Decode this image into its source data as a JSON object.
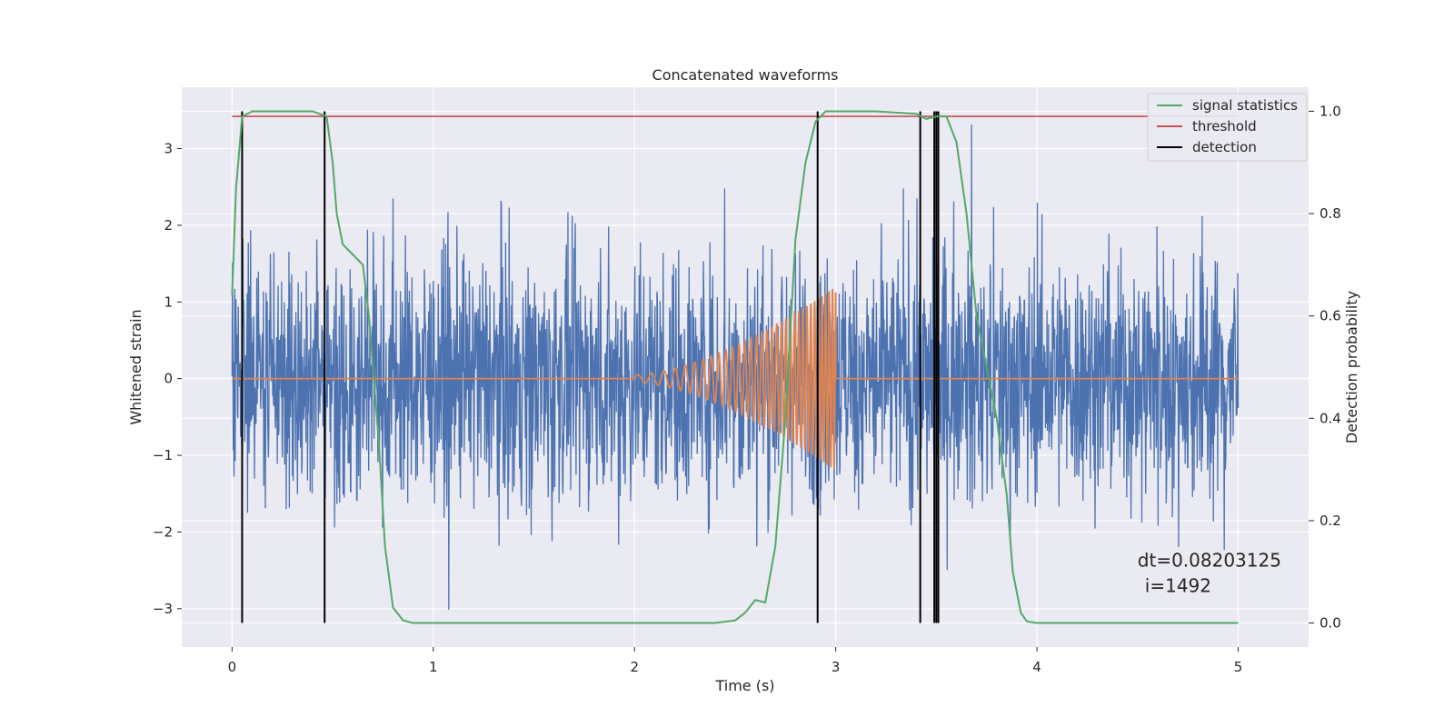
{
  "chart_data": {
    "type": "line",
    "title": "Concatenated waveforms",
    "xlabel": "Time (s)",
    "ylabel": "Whitened strain",
    "y2label": "Detection probability",
    "xlim": [
      -0.25,
      5.35
    ],
    "ylim": [
      -3.5,
      3.8
    ],
    "y2lim": [
      -0.047,
      1.047
    ],
    "xticks": [
      0,
      1,
      2,
      3,
      4,
      5
    ],
    "xtick_labels": [
      "0",
      "1",
      "2",
      "3",
      "4",
      "5"
    ],
    "yticks": [
      -3,
      -2,
      -1,
      0,
      1,
      2,
      3
    ],
    "ytick_labels": [
      "−3",
      "−2",
      "−1",
      "0",
      "1",
      "2",
      "3"
    ],
    "y2ticks": [
      0.0,
      0.2,
      0.4,
      0.6,
      0.8,
      1.0
    ],
    "y2tick_labels": [
      "0.0",
      "0.2",
      "0.4",
      "0.6",
      "0.8",
      "1.0"
    ],
    "grid": true,
    "legend_position": "top-right",
    "colors": {
      "strain": "#4c72b0",
      "waveform": "#dd8452",
      "signal_statistics": "#55a868",
      "threshold": "#c44e52",
      "detection": "#000000",
      "background": "#eaeaf2"
    },
    "series": [
      {
        "name": "signal statistics",
        "axis": "right",
        "x": [
          0.0,
          0.02,
          0.05,
          0.1,
          0.2,
          0.3,
          0.4,
          0.47,
          0.5,
          0.52,
          0.55,
          0.6,
          0.65,
          0.68,
          0.7,
          0.73,
          0.76,
          0.8,
          0.85,
          0.9,
          1.0,
          1.5,
          2.0,
          2.4,
          2.5,
          2.55,
          2.6,
          2.65,
          2.7,
          2.75,
          2.8,
          2.85,
          2.9,
          2.95,
          3.0,
          3.2,
          3.4,
          3.45,
          3.5,
          3.55,
          3.6,
          3.65,
          3.7,
          3.75,
          3.8,
          3.85,
          3.88,
          3.92,
          3.95,
          4.0,
          4.5,
          5.0
        ],
        "y": [
          0.64,
          0.85,
          0.99,
          1.0,
          1.0,
          1.0,
          1.0,
          0.99,
          0.9,
          0.8,
          0.74,
          0.72,
          0.7,
          0.6,
          0.5,
          0.35,
          0.15,
          0.03,
          0.005,
          0.0,
          0.0,
          0.0,
          0.0,
          0.0,
          0.005,
          0.02,
          0.045,
          0.04,
          0.15,
          0.4,
          0.75,
          0.9,
          0.98,
          1.0,
          1.0,
          1.0,
          0.995,
          0.985,
          0.99,
          0.99,
          0.94,
          0.8,
          0.6,
          0.5,
          0.4,
          0.25,
          0.1,
          0.02,
          0.003,
          0.0,
          0.0,
          0.0
        ]
      },
      {
        "name": "threshold",
        "axis": "right",
        "x": [
          0.0,
          5.0
        ],
        "y": [
          0.99,
          0.99
        ]
      },
      {
        "name": "detection",
        "axis": "right",
        "type": "vlines",
        "x": [
          0.05,
          0.46,
          2.91,
          3.42,
          3.49,
          3.5,
          3.51
        ],
        "ymin": 0.0,
        "ymax": 1.0
      }
    ],
    "waveform_chirp": {
      "axis": "left",
      "x_start": 2.0,
      "x_end": 3.0,
      "amp_start": 0.05,
      "amp_end": 1.2,
      "freq_start": 14,
      "freq_end": 60
    },
    "strain_noise": {
      "axis": "left",
      "x_start": 0.0,
      "x_end": 5.0,
      "approx_range": [
        -3.1,
        3.5
      ]
    },
    "annotation": {
      "line1": "dt=0.08203125",
      "line2": "i=1492",
      "x": 4.5,
      "y": -2.45
    },
    "legend": [
      {
        "label": "signal statistics",
        "color": "#55a868"
      },
      {
        "label": "threshold",
        "color": "#c44e52"
      },
      {
        "label": "detection",
        "color": "#000000"
      }
    ]
  }
}
